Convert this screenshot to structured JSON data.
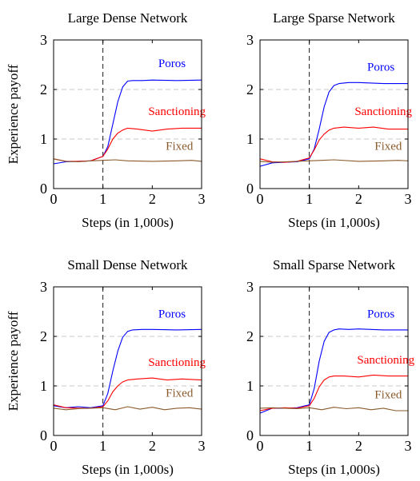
{
  "chart_data": [
    {
      "type": "line",
      "title": "Large Dense Network",
      "xlabel": "Steps (in 1,000s)",
      "ylabel": "Experience payoff",
      "xlim": [
        0,
        3
      ],
      "ylim": [
        0,
        3
      ],
      "xticks": [
        "0",
        "1",
        "2",
        "3"
      ],
      "yticks": [
        "0",
        "1",
        "2",
        "3"
      ],
      "vline_x": 1,
      "grid": "horizontal dashed",
      "series": [
        {
          "name": "Poros",
          "color": "#0000ff",
          "x": [
            0,
            0.25,
            0.5,
            0.75,
            1.0,
            1.1,
            1.2,
            1.3,
            1.4,
            1.5,
            1.6,
            1.8,
            2.0,
            2.5,
            3.0
          ],
          "y": [
            0.5,
            0.54,
            0.55,
            0.56,
            0.65,
            0.85,
            1.3,
            1.75,
            2.05,
            2.17,
            2.18,
            2.18,
            2.19,
            2.18,
            2.19
          ]
        },
        {
          "name": "Sanctioning",
          "color": "#ff0000",
          "x": [
            0,
            0.25,
            0.5,
            0.75,
            1.0,
            1.1,
            1.2,
            1.3,
            1.4,
            1.5,
            1.7,
            2.0,
            2.3,
            2.6,
            3.0
          ],
          "y": [
            0.6,
            0.55,
            0.55,
            0.56,
            0.65,
            0.8,
            1.0,
            1.12,
            1.18,
            1.22,
            1.2,
            1.16,
            1.2,
            1.22,
            1.22
          ]
        },
        {
          "name": "Fixed",
          "color": "#8b5a2b",
          "x": [
            0,
            0.25,
            0.5,
            0.75,
            1.0,
            1.25,
            1.5,
            2.0,
            2.5,
            2.8,
            3.0
          ],
          "y": [
            0.6,
            0.55,
            0.54,
            0.56,
            0.57,
            0.58,
            0.56,
            0.55,
            0.56,
            0.57,
            0.55
          ]
        }
      ]
    },
    {
      "type": "line",
      "title": "Large Sparse Network",
      "xlabel": "Steps (in 1,000s)",
      "ylabel": "",
      "xlim": [
        0,
        3
      ],
      "ylim": [
        0,
        3
      ],
      "xticks": [
        "0",
        "1",
        "2",
        "3"
      ],
      "yticks": [
        "0",
        "1",
        "2",
        "3"
      ],
      "vline_x": 1,
      "grid": "horizontal dashed",
      "series": [
        {
          "name": "Poros",
          "color": "#0000ff",
          "x": [
            0,
            0.25,
            0.5,
            0.75,
            1.0,
            1.1,
            1.2,
            1.3,
            1.4,
            1.5,
            1.6,
            1.8,
            2.0,
            2.5,
            3.0
          ],
          "y": [
            0.45,
            0.52,
            0.53,
            0.54,
            0.6,
            0.8,
            1.2,
            1.65,
            1.95,
            2.08,
            2.12,
            2.14,
            2.14,
            2.12,
            2.12
          ]
        },
        {
          "name": "Sanctioning",
          "color": "#ff0000",
          "x": [
            0,
            0.25,
            0.5,
            0.75,
            1.0,
            1.1,
            1.2,
            1.3,
            1.4,
            1.5,
            1.7,
            2.0,
            2.3,
            2.6,
            3.0
          ],
          "y": [
            0.6,
            0.54,
            0.53,
            0.55,
            0.62,
            0.78,
            0.98,
            1.1,
            1.18,
            1.22,
            1.24,
            1.22,
            1.24,
            1.2,
            1.2
          ]
        },
        {
          "name": "Fixed",
          "color": "#8b5a2b",
          "x": [
            0,
            0.25,
            0.5,
            0.75,
            1.0,
            1.25,
            1.5,
            2.0,
            2.5,
            2.8,
            3.0
          ],
          "y": [
            0.55,
            0.53,
            0.54,
            0.55,
            0.56,
            0.57,
            0.58,
            0.55,
            0.56,
            0.57,
            0.56
          ]
        }
      ]
    },
    {
      "type": "line",
      "title": "Small Dense Network",
      "xlabel": "Steps (in 1,000s)",
      "ylabel": "Experience payoff",
      "xlim": [
        0,
        3
      ],
      "ylim": [
        0,
        3
      ],
      "xticks": [
        "0",
        "1",
        "2",
        "3"
      ],
      "yticks": [
        "0",
        "1",
        "2",
        "3"
      ],
      "vline_x": 1,
      "grid": "horizontal dashed",
      "series": [
        {
          "name": "Poros",
          "color": "#0000ff",
          "x": [
            0,
            0.25,
            0.5,
            0.75,
            1.0,
            1.1,
            1.2,
            1.3,
            1.4,
            1.5,
            1.6,
            1.8,
            2.0,
            2.5,
            3.0
          ],
          "y": [
            0.6,
            0.56,
            0.58,
            0.56,
            0.6,
            0.85,
            1.3,
            1.7,
            1.98,
            2.1,
            2.13,
            2.14,
            2.14,
            2.13,
            2.14
          ]
        },
        {
          "name": "Sanctioning",
          "color": "#ff0000",
          "x": [
            0,
            0.25,
            0.5,
            0.75,
            1.0,
            1.1,
            1.2,
            1.3,
            1.4,
            1.5,
            1.7,
            2.0,
            2.3,
            2.6,
            3.0
          ],
          "y": [
            0.62,
            0.56,
            0.55,
            0.55,
            0.58,
            0.7,
            0.88,
            1.0,
            1.08,
            1.12,
            1.14,
            1.16,
            1.12,
            1.14,
            1.12
          ]
        },
        {
          "name": "Fixed",
          "color": "#8b5a2b",
          "x": [
            0,
            0.25,
            0.5,
            0.75,
            1.0,
            1.25,
            1.5,
            1.75,
            2.0,
            2.25,
            2.5,
            2.75,
            3.0
          ],
          "y": [
            0.55,
            0.52,
            0.54,
            0.55,
            0.56,
            0.52,
            0.58,
            0.53,
            0.57,
            0.52,
            0.55,
            0.56,
            0.53
          ]
        }
      ]
    },
    {
      "type": "line",
      "title": "Small Sparse Network",
      "xlabel": "Steps (in 1,000s)",
      "ylabel": "",
      "xlim": [
        0,
        3
      ],
      "ylim": [
        0,
        3
      ],
      "xticks": [
        "0",
        "1",
        "2",
        "3"
      ],
      "yticks": [
        "0",
        "1",
        "2",
        "3"
      ],
      "vline_x": 1,
      "grid": "horizontal dashed",
      "series": [
        {
          "name": "Poros",
          "color": "#0000ff",
          "x": [
            0,
            0.25,
            0.5,
            0.75,
            1.0,
            1.1,
            1.2,
            1.3,
            1.4,
            1.5,
            1.6,
            1.8,
            2.0,
            2.5,
            3.0
          ],
          "y": [
            0.45,
            0.55,
            0.55,
            0.56,
            0.62,
            0.95,
            1.5,
            1.9,
            2.08,
            2.13,
            2.15,
            2.14,
            2.15,
            2.13,
            2.13
          ]
        },
        {
          "name": "Sanctioning",
          "color": "#ff0000",
          "x": [
            0,
            0.25,
            0.5,
            0.75,
            1.0,
            1.1,
            1.2,
            1.3,
            1.4,
            1.5,
            1.7,
            2.0,
            2.3,
            2.6,
            3.0
          ],
          "y": [
            0.5,
            0.55,
            0.56,
            0.55,
            0.6,
            0.75,
            0.98,
            1.12,
            1.18,
            1.2,
            1.2,
            1.18,
            1.22,
            1.2,
            1.2
          ]
        },
        {
          "name": "Fixed",
          "color": "#8b5a2b",
          "x": [
            0,
            0.25,
            0.5,
            0.75,
            1.0,
            1.25,
            1.5,
            1.75,
            2.0,
            2.25,
            2.5,
            2.75,
            3.0
          ],
          "y": [
            0.55,
            0.56,
            0.55,
            0.54,
            0.56,
            0.52,
            0.57,
            0.54,
            0.56,
            0.52,
            0.55,
            0.5,
            0.5
          ]
        }
      ]
    }
  ]
}
